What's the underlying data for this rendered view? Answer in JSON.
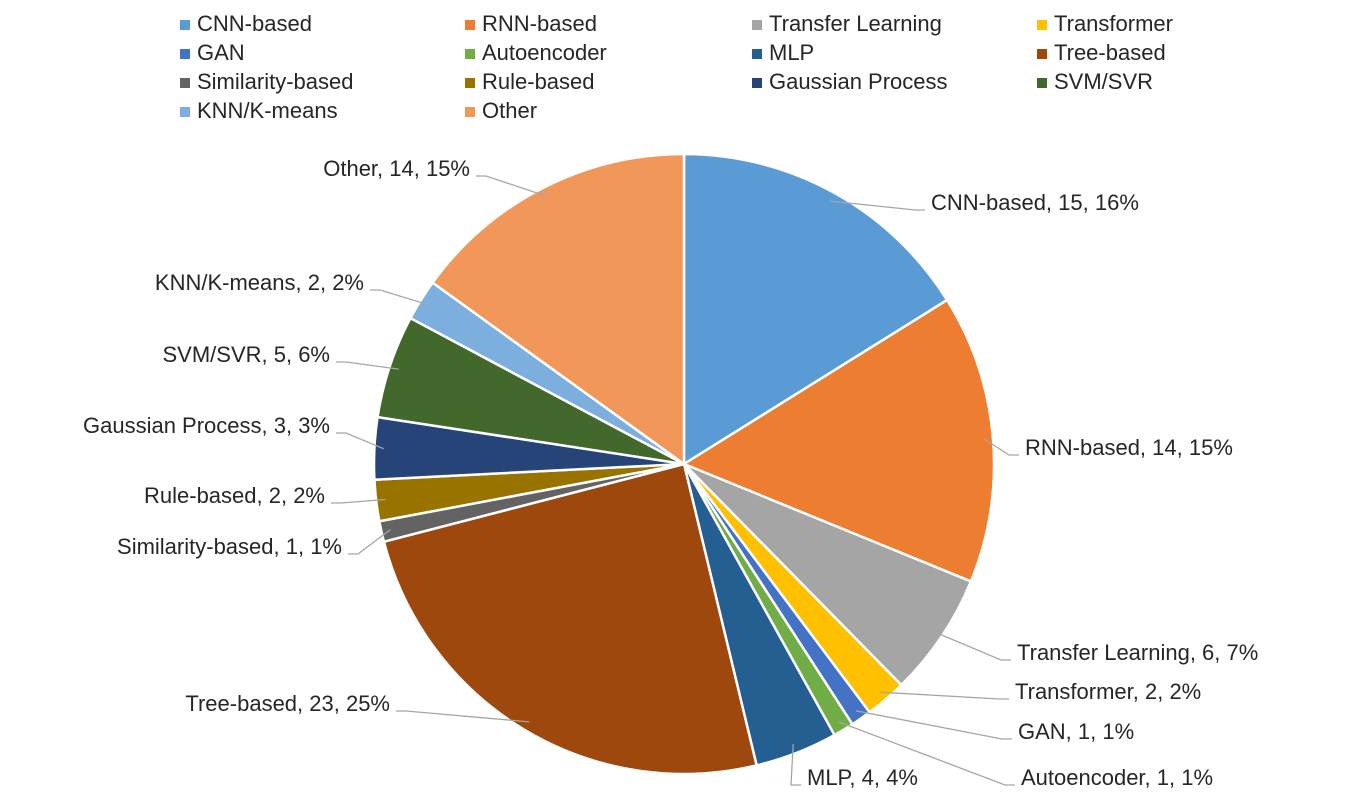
{
  "chart_data": {
    "type": "pie",
    "categories": [
      "CNN-based",
      "RNN-based",
      "Transfer Learning",
      "Transformer",
      "GAN",
      "Autoencoder",
      "MLP",
      "Tree-based",
      "Similarity-based",
      "Rule-based",
      "Gaussian Process",
      "SVM/SVR",
      "KNN/K-means",
      "Other"
    ],
    "values": [
      15,
      14,
      6,
      2,
      1,
      1,
      4,
      23,
      1,
      2,
      3,
      5,
      2,
      14
    ],
    "value_labels": [
      "CNN-based, 15, 16%",
      "RNN-based, 14, 15%",
      "Transfer Learning, 6, 7%",
      "Transformer, 2, 2%",
      "GAN, 1, 1%",
      "Autoencoder, 1, 1%",
      "MLP, 4, 4%",
      "Tree-based, 23, 25%",
      "Similarity-based, 1, 1%",
      "Rule-based, 2, 2%",
      "Gaussian Process, 3, 3%",
      "SVM/SVR, 5, 6%",
      "KNN/K-means, 2, 2%",
      "Other, 14, 15%"
    ],
    "colors": [
      "#5b9bd5",
      "#ed7d31",
      "#a5a5a5",
      "#ffc000",
      "#4472c4",
      "#70ad47",
      "#255e91",
      "#9e480e",
      "#636363",
      "#997300",
      "#264478",
      "#43682b",
      "#7cafdd",
      "#f1975a"
    ],
    "legend": "top"
  }
}
